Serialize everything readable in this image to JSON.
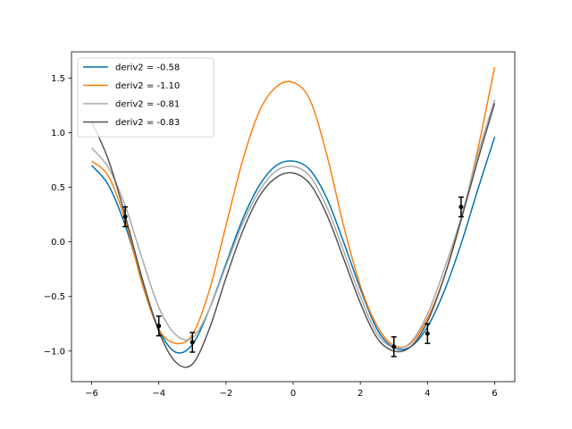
{
  "chart_data": {
    "type": "line",
    "title": "",
    "xlabel": "",
    "ylabel": "",
    "xlim": [
      -6.6,
      6.6
    ],
    "ylim": [
      -1.28,
      1.74
    ],
    "xticks": [
      -6,
      -4,
      -2,
      0,
      2,
      4,
      6
    ],
    "xtick_labels": [
      "−6",
      "−4",
      "−2",
      "0",
      "2",
      "4",
      "6"
    ],
    "yticks": [
      -1.0,
      -0.5,
      0.0,
      0.5,
      1.0,
      1.5
    ],
    "ytick_labels": [
      "−1.0",
      "−0.5",
      "0.0",
      "0.5",
      "1.0",
      "1.5"
    ],
    "grid": false,
    "legend_position": "top-left",
    "series": [
      {
        "name": "deriv2 = -0.58",
        "color": "#0072b2",
        "points": [
          [
            -6,
            0.7
          ],
          [
            -5.5,
            0.52
          ],
          [
            -5,
            0.15
          ],
          [
            -4.5,
            -0.35
          ],
          [
            -4,
            -0.8
          ],
          [
            -3.5,
            -1.01
          ],
          [
            -3,
            -0.94
          ],
          [
            -2.5,
            -0.62
          ],
          [
            -2,
            -0.2
          ],
          [
            -1.5,
            0.21
          ],
          [
            -1,
            0.52
          ],
          [
            -0.5,
            0.7
          ],
          [
            0,
            0.74
          ],
          [
            0.5,
            0.66
          ],
          [
            1,
            0.4
          ],
          [
            1.5,
            0.0
          ],
          [
            2,
            -0.43
          ],
          [
            2.5,
            -0.8
          ],
          [
            3,
            -0.97
          ],
          [
            3.5,
            -0.96
          ],
          [
            4,
            -0.78
          ],
          [
            4.5,
            -0.45
          ],
          [
            5,
            -0.02
          ],
          [
            5.5,
            0.48
          ],
          [
            6,
            0.96
          ]
        ]
      },
      {
        "name": "deriv2 = -1.10",
        "color": "#ff7f0e",
        "points": [
          [
            -6,
            0.74
          ],
          [
            -5.5,
            0.6
          ],
          [
            -5,
            0.2
          ],
          [
            -4.5,
            -0.38
          ],
          [
            -4,
            -0.8
          ],
          [
            -3.5,
            -0.93
          ],
          [
            -3,
            -0.85
          ],
          [
            -2.5,
            -0.45
          ],
          [
            -2,
            0.15
          ],
          [
            -1.5,
            0.75
          ],
          [
            -1,
            1.2
          ],
          [
            -0.5,
            1.42
          ],
          [
            0,
            1.46
          ],
          [
            0.5,
            1.3
          ],
          [
            1,
            0.8
          ],
          [
            1.5,
            0.15
          ],
          [
            2,
            -0.4
          ],
          [
            2.5,
            -0.77
          ],
          [
            3,
            -0.95
          ],
          [
            3.5,
            -0.93
          ],
          [
            4,
            -0.7
          ],
          [
            4.5,
            -0.32
          ],
          [
            5,
            0.2
          ],
          [
            5.5,
            0.85
          ],
          [
            6,
            1.6
          ]
        ]
      },
      {
        "name": "deriv2 = -0.81",
        "color": "#aaaaaa",
        "points": [
          [
            -6,
            0.86
          ],
          [
            -5.5,
            0.68
          ],
          [
            -5,
            0.33
          ],
          [
            -4.5,
            -0.15
          ],
          [
            -4,
            -0.6
          ],
          [
            -3.5,
            -0.85
          ],
          [
            -3,
            -0.88
          ],
          [
            -2.5,
            -0.62
          ],
          [
            -2,
            -0.22
          ],
          [
            -1.5,
            0.17
          ],
          [
            -1,
            0.47
          ],
          [
            -0.5,
            0.65
          ],
          [
            0,
            0.69
          ],
          [
            0.5,
            0.6
          ],
          [
            1,
            0.32
          ],
          [
            1.5,
            -0.08
          ],
          [
            2,
            -0.5
          ],
          [
            2.5,
            -0.84
          ],
          [
            3,
            -0.97
          ],
          [
            3.5,
            -0.92
          ],
          [
            4,
            -0.66
          ],
          [
            4.5,
            -0.25
          ],
          [
            5,
            0.22
          ],
          [
            5.5,
            0.8
          ],
          [
            6,
            1.3
          ]
        ]
      },
      {
        "name": "deriv2 = -0.83",
        "color": "#555555",
        "points": [
          [
            -6,
            1.1
          ],
          [
            -5.5,
            0.75
          ],
          [
            -5,
            0.24
          ],
          [
            -4.5,
            -0.33
          ],
          [
            -4,
            -0.82
          ],
          [
            -3.5,
            -1.1
          ],
          [
            -3,
            -1.12
          ],
          [
            -2.5,
            -0.8
          ],
          [
            -2,
            -0.33
          ],
          [
            -1.5,
            0.1
          ],
          [
            -1,
            0.42
          ],
          [
            -0.5,
            0.59
          ],
          [
            0,
            0.63
          ],
          [
            0.5,
            0.53
          ],
          [
            1,
            0.25
          ],
          [
            1.5,
            -0.15
          ],
          [
            2,
            -0.56
          ],
          [
            2.5,
            -0.88
          ],
          [
            3,
            -1.0
          ],
          [
            3.5,
            -0.96
          ],
          [
            4,
            -0.73
          ],
          [
            4.5,
            -0.32
          ],
          [
            5,
            0.2
          ],
          [
            5.5,
            0.75
          ],
          [
            6,
            1.27
          ]
        ]
      }
    ],
    "observations": {
      "color": "#000000",
      "points": [
        {
          "x": -5,
          "y": 0.23,
          "err": 0.09
        },
        {
          "x": -4,
          "y": -0.77,
          "err": 0.09
        },
        {
          "x": -3,
          "y": -0.92,
          "err": 0.09
        },
        {
          "x": 3,
          "y": -0.96,
          "err": 0.09
        },
        {
          "x": 4,
          "y": -0.84,
          "err": 0.09
        },
        {
          "x": 5,
          "y": 0.32,
          "err": 0.09
        }
      ]
    }
  }
}
